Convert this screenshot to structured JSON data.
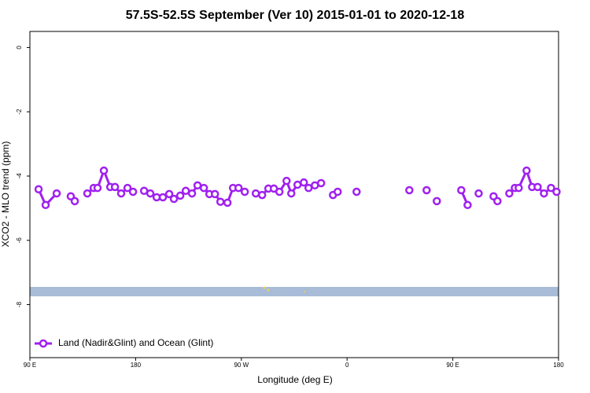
{
  "chart_data": {
    "type": "line",
    "title": "57.5S-52.5S September (Ver 10)   2015-01-01 to 2020-12-18",
    "xlabel": "Longitude (deg E)",
    "ylabel": "XCO2 - MLO trend (ppm)",
    "xlim": [
      90,
      540
    ],
    "xticks": [
      {
        "value": 90,
        "label": "90 E"
      },
      180,
      {
        "value": 270,
        "label": "90 W"
      },
      {
        "value": 360,
        "label": "0"
      },
      {
        "value": 450,
        "label": "90 E"
      },
      {
        "value": 540,
        "label": "180"
      }
    ],
    "ylim": [
      -9.65,
      0.5
    ],
    "yticks": [
      0,
      -2,
      -4,
      -6,
      -8
    ],
    "legend": "bottom-left",
    "x": [
      97.4,
      103.4,
      112.8,
      null,
      124.8,
      128.2,
      null,
      138.9,
      144.3,
      147.6,
      153.0,
      158.4,
      162.4,
      167.7,
      173.1,
      177.8,
      null,
      187.2,
      192.5,
      197.9,
      203.2,
      208.6,
      212.6,
      218.0,
      222.7,
      228.0,
      232.7,
      238.1,
      242.8,
      247.5,
      252.2,
      258.2,
      262.9,
      267.6,
      272.9,
      null,
      282.3,
      287.7,
      293.0,
      297.7,
      302.4,
      308.5,
      312.5,
      317.8,
      323.2,
      327.2,
      332.6,
      337.9,
      null,
      348.0,
      352.0,
      null,
      368.1,
      null,
      413.0,
      null,
      427.7,
      null,
      436.4,
      null,
      457.2,
      462.6,
      null,
      472.0,
      null,
      484.7,
      488.0,
      null,
      498.1,
      502.8,
      506.1,
      512.8,
      517.5,
      522.2,
      527.6,
      533.6,
      538.3
    ],
    "series": [
      {
        "name": "Land (Nadir&Glint) and Ocean (Glint)",
        "color": "#a020f0",
        "values": [
          -4.41,
          -4.9,
          -4.54,
          null,
          -4.63,
          -4.78,
          null,
          -4.54,
          -4.37,
          -4.37,
          -3.83,
          -4.34,
          -4.34,
          -4.54,
          -4.37,
          -4.49,
          null,
          -4.46,
          -4.54,
          -4.66,
          -4.66,
          -4.56,
          -4.71,
          -4.61,
          -4.46,
          -4.54,
          -4.29,
          -4.37,
          -4.56,
          -4.56,
          -4.8,
          -4.83,
          -4.37,
          -4.37,
          -4.49,
          null,
          -4.54,
          -4.59,
          -4.39,
          -4.39,
          -4.49,
          -4.15,
          -4.54,
          -4.27,
          -4.2,
          -4.37,
          -4.29,
          -4.22,
          null,
          -4.59,
          -4.49,
          null,
          -4.49,
          null,
          -4.44,
          null,
          -4.44,
          null,
          -4.78,
          null,
          -4.44,
          -4.9,
          null,
          -4.54,
          null,
          -4.63,
          -4.78,
          null,
          -4.54,
          -4.37,
          -4.37,
          -3.83,
          -4.34,
          -4.34,
          -4.54,
          -4.37,
          -4.49
        ]
      }
    ]
  }
}
